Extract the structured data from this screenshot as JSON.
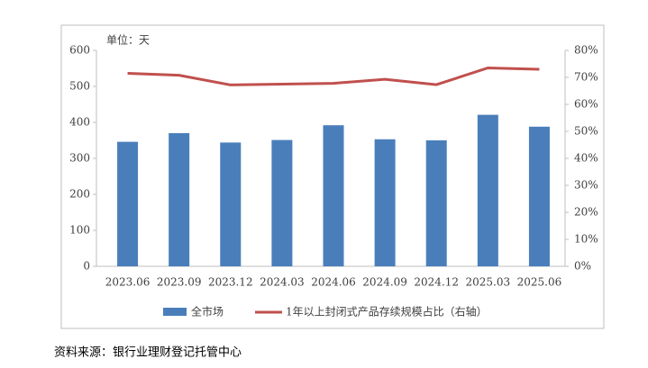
{
  "chart_data": {
    "type": "combo",
    "unit_label": "单位：天",
    "source": "资料来源：银行业理财登记托管中心",
    "categories": [
      "2023.06",
      "2023.09",
      "2023.12",
      "2024.03",
      "2024.06",
      "2024.09",
      "2024.12",
      "2025.03",
      "2025.06"
    ],
    "series": [
      {
        "name": "全市场",
        "type": "bar",
        "color": "#4a7ebb",
        "values": [
          346,
          370,
          344,
          351,
          392,
          353,
          350,
          421,
          388
        ]
      },
      {
        "name": "1年以上封闭式产品存续规模占比（右轴）",
        "type": "line",
        "axis": "y2",
        "color": "#c0504d",
        "values": [
          71.5,
          70.8,
          67.2,
          67.5,
          67.8,
          69.3,
          67.3,
          73.5,
          73.0
        ]
      }
    ],
    "ylim": [
      0,
      600
    ],
    "yticks": [
      0,
      100,
      200,
      300,
      400,
      500,
      600
    ],
    "y2lim": [
      0,
      80
    ],
    "y2ticks": [
      {
        "value": 0,
        "label": "0%"
      },
      {
        "value": 10,
        "label": "10%"
      },
      {
        "value": 20,
        "label": "20%"
      },
      {
        "value": 30,
        "label": "30%"
      },
      {
        "value": 40,
        "label": "40%"
      },
      {
        "value": 50,
        "label": "50%"
      },
      {
        "value": 60,
        "label": "60%"
      },
      {
        "value": 70,
        "label": "70%"
      },
      {
        "value": 80,
        "label": "80%"
      }
    ],
    "grid": false
  }
}
